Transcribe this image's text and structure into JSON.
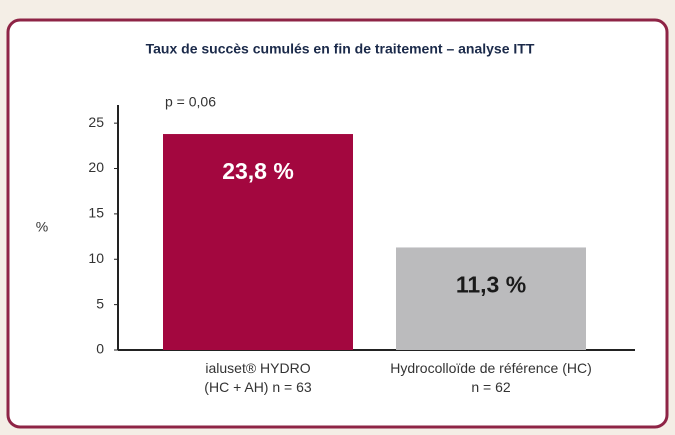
{
  "chart_data": {
    "type": "bar",
    "title": "Taux de succès cumulés en fin de traitement – analyse ITT",
    "y_label": "%",
    "annotation": "p = 0,06",
    "categories": [
      "ialuset® HYDRO\n(HC + AH) n = 63",
      "Hydrocolloïde de référence (HC)\nn = 62"
    ],
    "values": [
      23.8,
      11.3
    ],
    "value_labels": [
      "23,8 %",
      "11,3 %"
    ],
    "colors": [
      "#a3073f",
      "#bbbbbd"
    ],
    "label_colors": [
      "#ffffff",
      "#1a1a1a"
    ],
    "ylim": [
      0,
      27
    ],
    "yticks": [
      0,
      5,
      10,
      15,
      20,
      25
    ]
  }
}
